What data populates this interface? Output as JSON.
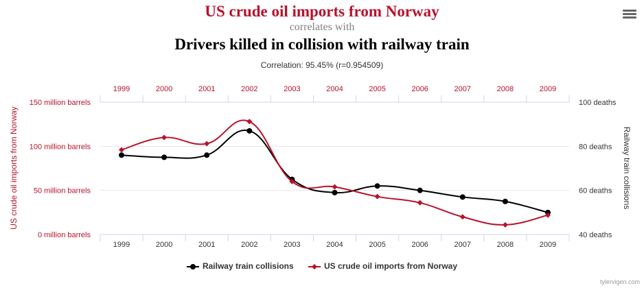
{
  "header": {
    "title_top": "US crude oil imports from Norway",
    "correlates": "correlates with",
    "title_bottom": "Drivers killed in collision with railway train",
    "subtitle": "Correlation: 95.45% (r=0.954509)"
  },
  "menu": {
    "icon": "hamburger-menu-icon"
  },
  "legend": {
    "series1": "Railway train collisions",
    "series2": "US crude oil imports from Norway"
  },
  "credit": "tylervigen.com",
  "colors": {
    "red": "#b8122c",
    "black": "#000000",
    "grid": "#e6e6e6",
    "axis": "#ccd6eb"
  },
  "chart_data": {
    "type": "line",
    "x": [
      "1999",
      "2000",
      "2001",
      "2002",
      "2003",
      "2004",
      "2005",
      "2006",
      "2007",
      "2008",
      "2009"
    ],
    "series": [
      {
        "name": "Railway train collisions",
        "axis": "right",
        "color": "#000000",
        "marker": "circle",
        "values": [
          76,
          75,
          76,
          87,
          65,
          59,
          62,
          60,
          57,
          55,
          50
        ]
      },
      {
        "name": "US crude oil imports from Norway",
        "axis": "left",
        "color": "#b8122c",
        "marker": "diamond",
        "values": [
          96,
          110,
          103,
          128,
          60,
          54,
          43,
          36,
          20,
          11,
          22
        ]
      }
    ],
    "left_axis": {
      "label": "US crude oil imports from Norway",
      "range": [
        0,
        150
      ],
      "ticks": [
        {
          "value": 0,
          "label": "0 million barrels"
        },
        {
          "value": 50,
          "label": "50 million barrels"
        },
        {
          "value": 100,
          "label": "100 million barrels"
        },
        {
          "value": 150,
          "label": "150 million barrels"
        }
      ]
    },
    "right_axis": {
      "label": "Railway train collisions",
      "range": [
        40,
        100
      ],
      "ticks": [
        {
          "value": 40,
          "label": "40 deaths"
        },
        {
          "value": 60,
          "label": "60 deaths"
        },
        {
          "value": 80,
          "label": "80 deaths"
        },
        {
          "value": 100,
          "label": "100 deaths"
        }
      ]
    },
    "grid": true,
    "legend_position": "bottom-center"
  }
}
